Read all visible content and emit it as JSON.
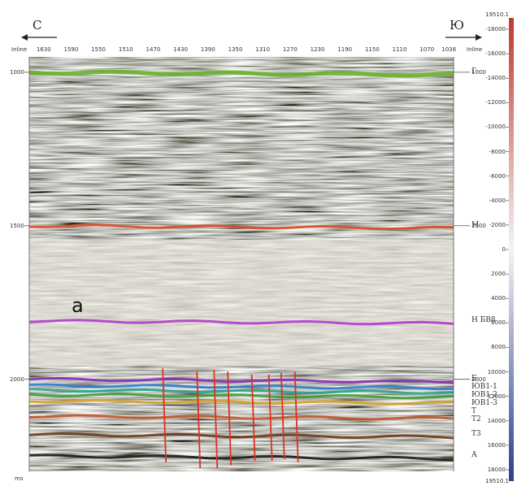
{
  "header": {
    "left_direction": "С",
    "right_direction": "Ю",
    "inline_left": "Inline",
    "inline_right": "Inline",
    "units": "ms",
    "panel_label": "а"
  },
  "chart_data": {
    "type": "heatmap",
    "x_axis": {
      "label": "Inline",
      "ticks": [
        "1630",
        "1590",
        "1550",
        "1510",
        "1470",
        "1430",
        "1390",
        "1350",
        "1310",
        "1270",
        "1230",
        "1190",
        "1150",
        "1110",
        "1070",
        "1038"
      ],
      "range": [
        1650,
        1030
      ],
      "reversed": true
    },
    "y_axis_left": {
      "label": "ms",
      "ticks": [
        "1000",
        "1500",
        "2000"
      ],
      "range": [
        950,
        2300
      ],
      "reversed": true
    },
    "y_axis_right_times": [
      "1000",
      "1500",
      "2000"
    ],
    "color_scale": {
      "top_label": "19510.1",
      "bottom_label": "19510.1",
      "ticks": [
        "-18000",
        "-16000",
        "-14000",
        "-12000",
        "-10000",
        "-8000",
        "-6000",
        "-4000",
        "-2000",
        "0",
        "2000",
        "4000",
        "6000",
        "8000",
        "10000",
        "12000",
        "14000",
        "16000",
        "18000"
      ]
    },
    "horizons": [
      {
        "name": "Г",
        "time_ms": 1000,
        "color": "#6cb22e"
      },
      {
        "name": "М",
        "time_ms": 1500,
        "color": "#d64a22"
      },
      {
        "name": "Н БВ8",
        "time_ms": 1810,
        "color": "#b03cc9"
      },
      {
        "name": "Б",
        "time_ms": 2000,
        "color": "#8a2bb3"
      },
      {
        "name": "ЮВ1-1",
        "time_ms": 2020,
        "color": "#2a7fd0"
      },
      {
        "name": "ЮВ1-2",
        "time_ms": 2035,
        "color": "#2aa58a"
      },
      {
        "name": "ЮВ1-3",
        "time_ms": 2050,
        "color": "#3a9e3a"
      },
      {
        "name": "Т",
        "time_ms": 2070,
        "color": "#d9a12a"
      },
      {
        "name": "Т2",
        "time_ms": 2120,
        "color": "#c0562a"
      },
      {
        "name": "Т3",
        "time_ms": 2180,
        "color": "#6a3a1a"
      },
      {
        "name": "А",
        "time_ms": 2250,
        "color": "#1a1a1a"
      }
    ],
    "horizon_labels": [
      "Г",
      "М",
      "Н БВ8",
      "Б",
      "ЮВ1-1",
      "ЮВ1-2",
      "ЮВ1-3",
      "Т",
      "Т2",
      "Т3",
      "А"
    ],
    "faults": [
      {
        "inline": 1455,
        "top_ms": 1965,
        "bottom_ms": 2270
      },
      {
        "inline": 1405,
        "top_ms": 1975,
        "bottom_ms": 2290
      },
      {
        "inline": 1380,
        "top_ms": 1970,
        "bottom_ms": 2290
      },
      {
        "inline": 1360,
        "top_ms": 1975,
        "bottom_ms": 2280
      },
      {
        "inline": 1325,
        "top_ms": 1985,
        "bottom_ms": 2265
      },
      {
        "inline": 1300,
        "top_ms": 1985,
        "bottom_ms": 2265
      },
      {
        "inline": 1282,
        "top_ms": 1980,
        "bottom_ms": 2260
      },
      {
        "inline": 1262,
        "top_ms": 1975,
        "bottom_ms": 2270
      }
    ],
    "fault_color": "#e03020"
  }
}
